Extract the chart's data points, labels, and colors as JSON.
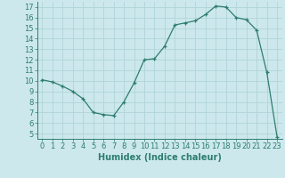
{
  "x": [
    0,
    1,
    2,
    3,
    4,
    5,
    6,
    7,
    8,
    9,
    10,
    11,
    12,
    13,
    14,
    15,
    16,
    17,
    18,
    19,
    20,
    21,
    22,
    23
  ],
  "y": [
    10.1,
    9.9,
    9.5,
    9.0,
    8.3,
    7.0,
    6.8,
    6.7,
    8.0,
    9.8,
    12.0,
    12.1,
    13.3,
    15.3,
    15.5,
    15.7,
    16.3,
    17.1,
    17.0,
    16.0,
    15.8,
    14.8,
    10.8,
    4.7
  ],
  "xlabel": "Humidex (Indice chaleur)",
  "line_color": "#2e7d6e",
  "marker": "+",
  "bg_color": "#cce8ec",
  "grid_color": "#b0d4d8",
  "ylim": [
    4.5,
    17.5
  ],
  "xlim": [
    -0.5,
    23.5
  ],
  "yticks": [
    5,
    6,
    7,
    8,
    9,
    10,
    11,
    12,
    13,
    14,
    15,
    16,
    17
  ],
  "xticks": [
    0,
    1,
    2,
    3,
    4,
    5,
    6,
    7,
    8,
    9,
    10,
    11,
    12,
    13,
    14,
    15,
    16,
    17,
    18,
    19,
    20,
    21,
    22,
    23
  ],
  "xlabel_fontsize": 7.0,
  "tick_fontsize": 6.0
}
